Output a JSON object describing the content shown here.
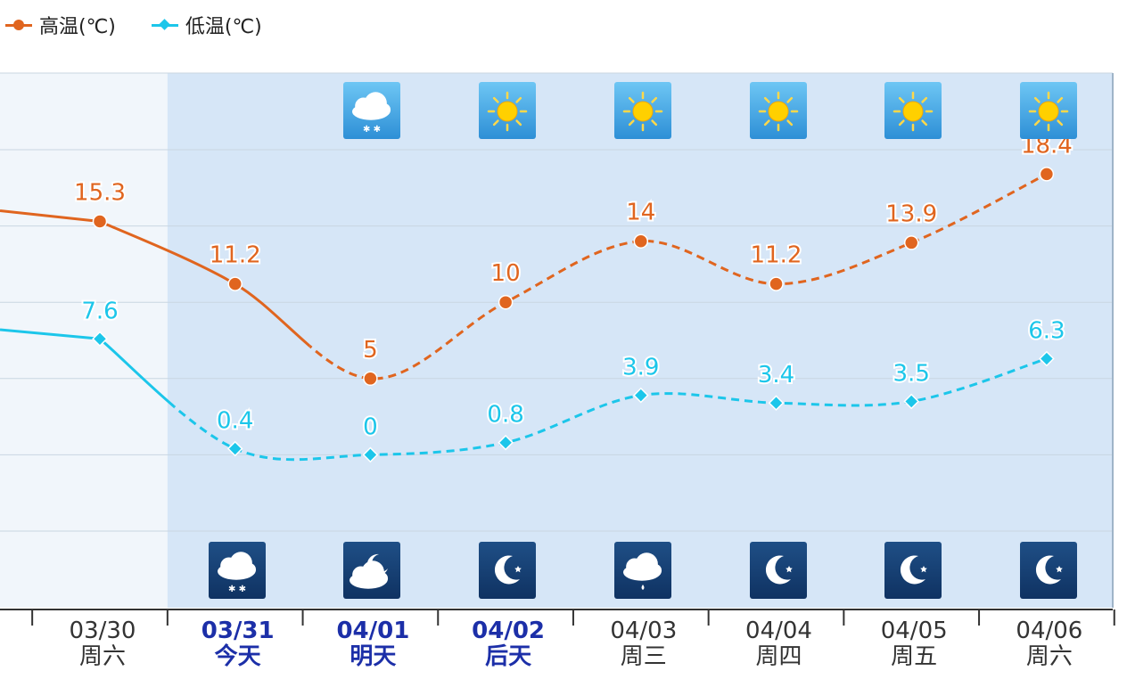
{
  "legend": [
    {
      "label": "高温(℃)",
      "color": "#e0651f",
      "marker": "circle"
    },
    {
      "label": "低温(℃)",
      "color": "#1cc6ea",
      "marker": "diamond"
    }
  ],
  "colors": {
    "high": "#e0651f",
    "low": "#1cc6ea",
    "forecast_band": "#d6e6f7",
    "grid": "#c9d6e2"
  },
  "chart_data": {
    "type": "line",
    "categories": [
      "03/30",
      "03/31",
      "04/01",
      "04/02",
      "04/03",
      "04/04",
      "04/05",
      "04/06"
    ],
    "weekdays": [
      "周六",
      "今天",
      "明天",
      "后天",
      "周三",
      "周四",
      "周五",
      "周六"
    ],
    "highlighted": [
      false,
      true,
      true,
      true,
      false,
      false,
      false,
      false
    ],
    "series": [
      {
        "name": "高温(℃)",
        "values": [
          15.3,
          11.2,
          5,
          10,
          14,
          11.2,
          13.9,
          18.4
        ]
      },
      {
        "name": "低温(℃)",
        "values": [
          7.6,
          0.4,
          0,
          0.8,
          3.9,
          3.4,
          3.5,
          6.3
        ]
      }
    ],
    "value_labels": {
      "high": [
        "15.3",
        "11.2",
        "5",
        "10",
        "14",
        "11.2",
        "13.9",
        "18.4"
      ],
      "low": [
        "7.6",
        "0.4",
        "0",
        "0.8",
        "3.9",
        "3.4",
        "3.5",
        "6.3"
      ]
    },
    "forecast_start_index": 1,
    "ylim": [
      -5,
      20
    ],
    "grid": true,
    "legend_position": "top-left",
    "day_icons": [
      "",
      "",
      "snow-cloud-icon",
      "sun-icon",
      "sun-icon",
      "sun-icon",
      "sun-icon",
      "sun-icon"
    ],
    "night_icons": [
      "",
      "snow-cloud-icon",
      "moon-cloud-icon",
      "moon-icon",
      "rain-cloud-icon",
      "moon-icon",
      "moon-icon",
      "moon-icon"
    ]
  }
}
